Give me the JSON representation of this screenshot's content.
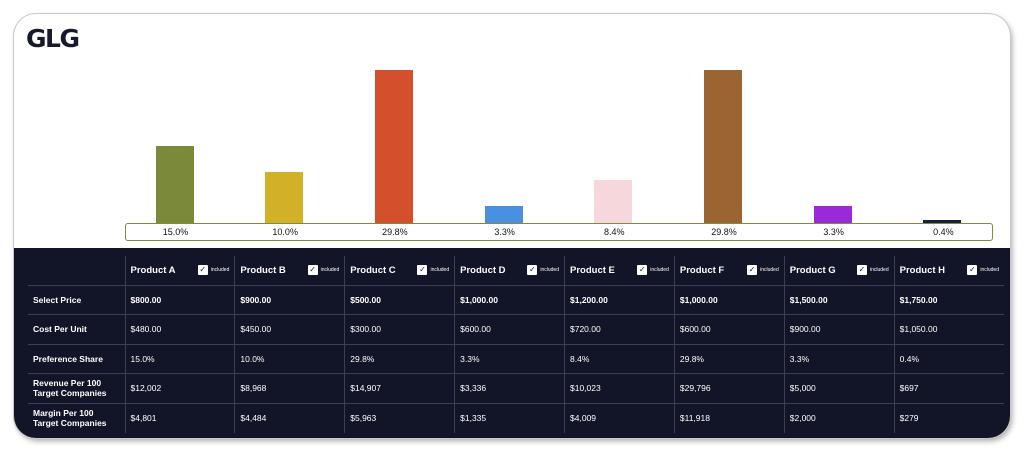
{
  "brand": {
    "logo_text": "GLG"
  },
  "chart_data": {
    "type": "bar",
    "categories": [
      "Product A",
      "Product B",
      "Product C",
      "Product D",
      "Product E",
      "Product F",
      "Product G",
      "Product H"
    ],
    "values": [
      15.0,
      10.0,
      29.8,
      3.3,
      8.4,
      29.8,
      3.3,
      0.4
    ],
    "data_labels": [
      "15.0%",
      "10.0%",
      "29.8%",
      "3.3%",
      "8.4%",
      "29.8%",
      "3.3%",
      "0.4%"
    ],
    "colors": [
      "#7a8a3a",
      "#d2b028",
      "#d4502c",
      "#4a8fe0",
      "#f6d8dc",
      "#9a6532",
      "#9a2ad8",
      "#16213d"
    ],
    "ylim": [
      0,
      29.8
    ],
    "title": "",
    "xlabel": "",
    "ylabel": ""
  },
  "table": {
    "included_label": "included",
    "check_glyph": "✓",
    "products": [
      "Product A",
      "Product B",
      "Product C",
      "Product D",
      "Product E",
      "Product F",
      "Product G",
      "Product H"
    ],
    "rows": [
      {
        "label": "Select Price",
        "bold": true,
        "values": [
          "$800.00",
          "$900.00",
          "$500.00",
          "$1,000.00",
          "$1,200.00",
          "$1,000.00",
          "$1,500.00",
          "$1,750.00"
        ]
      },
      {
        "label": "Cost Per Unit",
        "bold": false,
        "values": [
          "$480.00",
          "$450.00",
          "$300.00",
          "$600.00",
          "$720.00",
          "$600.00",
          "$900.00",
          "$1,050.00"
        ]
      },
      {
        "label": "Preference Share",
        "bold": false,
        "values": [
          "15.0%",
          "10.0%",
          "29.8%",
          "3.3%",
          "8.4%",
          "29.8%",
          "3.3%",
          "0.4%"
        ]
      },
      {
        "label": "Revenue Per 100 Target Companies",
        "bold": false,
        "values": [
          "$12,002",
          "$8,968",
          "$14,907",
          "$3,336",
          "$10,023",
          "$29,796",
          "$5,000",
          "$697"
        ]
      },
      {
        "label": "Margin Per 100 Target Companies",
        "bold": false,
        "values": [
          "$4,801",
          "$4,484",
          "$5,963",
          "$1,335",
          "$4,009",
          "$11,918",
          "$2,000",
          "$279"
        ]
      }
    ]
  }
}
